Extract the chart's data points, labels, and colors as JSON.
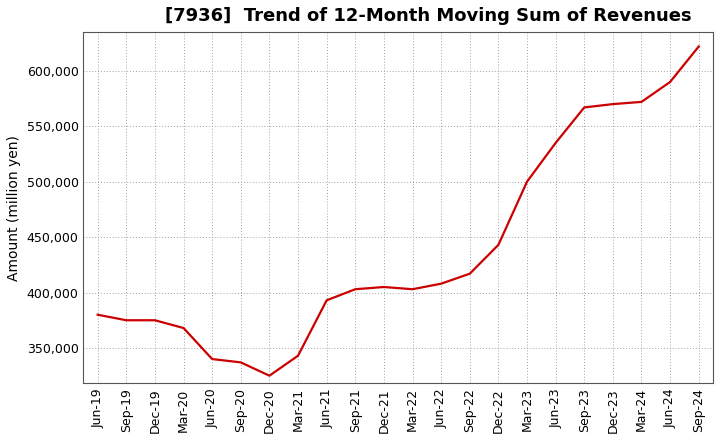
{
  "title": "[7936]  Trend of 12-Month Moving Sum of Revenues",
  "ylabel": "Amount (million yen)",
  "line_color": "#cc0000",
  "background_color": "#ffffff",
  "grid_color": "#999999",
  "x_labels": [
    "Jun-19",
    "Sep-19",
    "Dec-19",
    "Mar-20",
    "Jun-20",
    "Sep-20",
    "Dec-20",
    "Mar-21",
    "Jun-21",
    "Sep-21",
    "Dec-21",
    "Mar-22",
    "Jun-22",
    "Sep-22",
    "Dec-22",
    "Mar-23",
    "Jun-23",
    "Sep-23",
    "Dec-23",
    "Mar-24",
    "Jun-24",
    "Sep-24"
  ],
  "values": [
    380000,
    375000,
    375000,
    368000,
    340000,
    337000,
    325000,
    343000,
    393000,
    403000,
    405000,
    403000,
    408000,
    417000,
    443000,
    500000,
    535000,
    567000,
    570000,
    572000,
    590000,
    622000
  ],
  "ylim": [
    318000,
    635000
  ],
  "yticks": [
    350000,
    400000,
    450000,
    500000,
    550000,
    600000
  ],
  "title_fontsize": 13,
  "label_fontsize": 10,
  "tick_fontsize": 9
}
